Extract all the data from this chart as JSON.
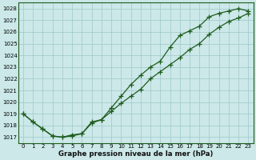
{
  "x": [
    0,
    1,
    2,
    3,
    4,
    5,
    6,
    7,
    8,
    9,
    10,
    11,
    12,
    13,
    14,
    15,
    16,
    17,
    18,
    19,
    20,
    21,
    22,
    23
  ],
  "line_upper": [
    1019.0,
    1018.3,
    1017.7,
    1017.1,
    1017.0,
    1017.1,
    1017.3,
    1018.3,
    1018.5,
    1019.5,
    1020.5,
    1021.5,
    1022.3,
    1023.0,
    1023.5,
    1024.7,
    1025.7,
    1026.1,
    1026.5,
    1027.3,
    1027.6,
    1027.8,
    1028.0,
    1027.8
  ],
  "line_lower": [
    1019.0,
    1018.3,
    1017.7,
    1017.1,
    1017.0,
    1017.2,
    1017.3,
    1018.2,
    1018.5,
    1019.2,
    1019.9,
    1020.5,
    1021.1,
    1022.0,
    1022.6,
    1023.2,
    1023.8,
    1024.5,
    1025.0,
    1025.8,
    1026.4,
    1026.9,
    1027.2,
    1027.6
  ],
  "ylim_min": 1016.5,
  "ylim_max": 1028.5,
  "yticks": [
    1017,
    1018,
    1019,
    1020,
    1021,
    1022,
    1023,
    1024,
    1025,
    1026,
    1027,
    1028
  ],
  "xticks": [
    0,
    1,
    2,
    3,
    4,
    5,
    6,
    7,
    8,
    9,
    10,
    11,
    12,
    13,
    14,
    15,
    16,
    17,
    18,
    19,
    20,
    21,
    22,
    23
  ],
  "xlabel": "Graphe pression niveau de la mer (hPa)",
  "line_color": "#1e5c1e",
  "bg_color": "#cce8e8",
  "grid_color": "#9ec8c8",
  "marker": "+",
  "markersize": 4,
  "linewidth": 0.9,
  "tick_fontsize": 5.0,
  "xlabel_fontsize": 6.2
}
